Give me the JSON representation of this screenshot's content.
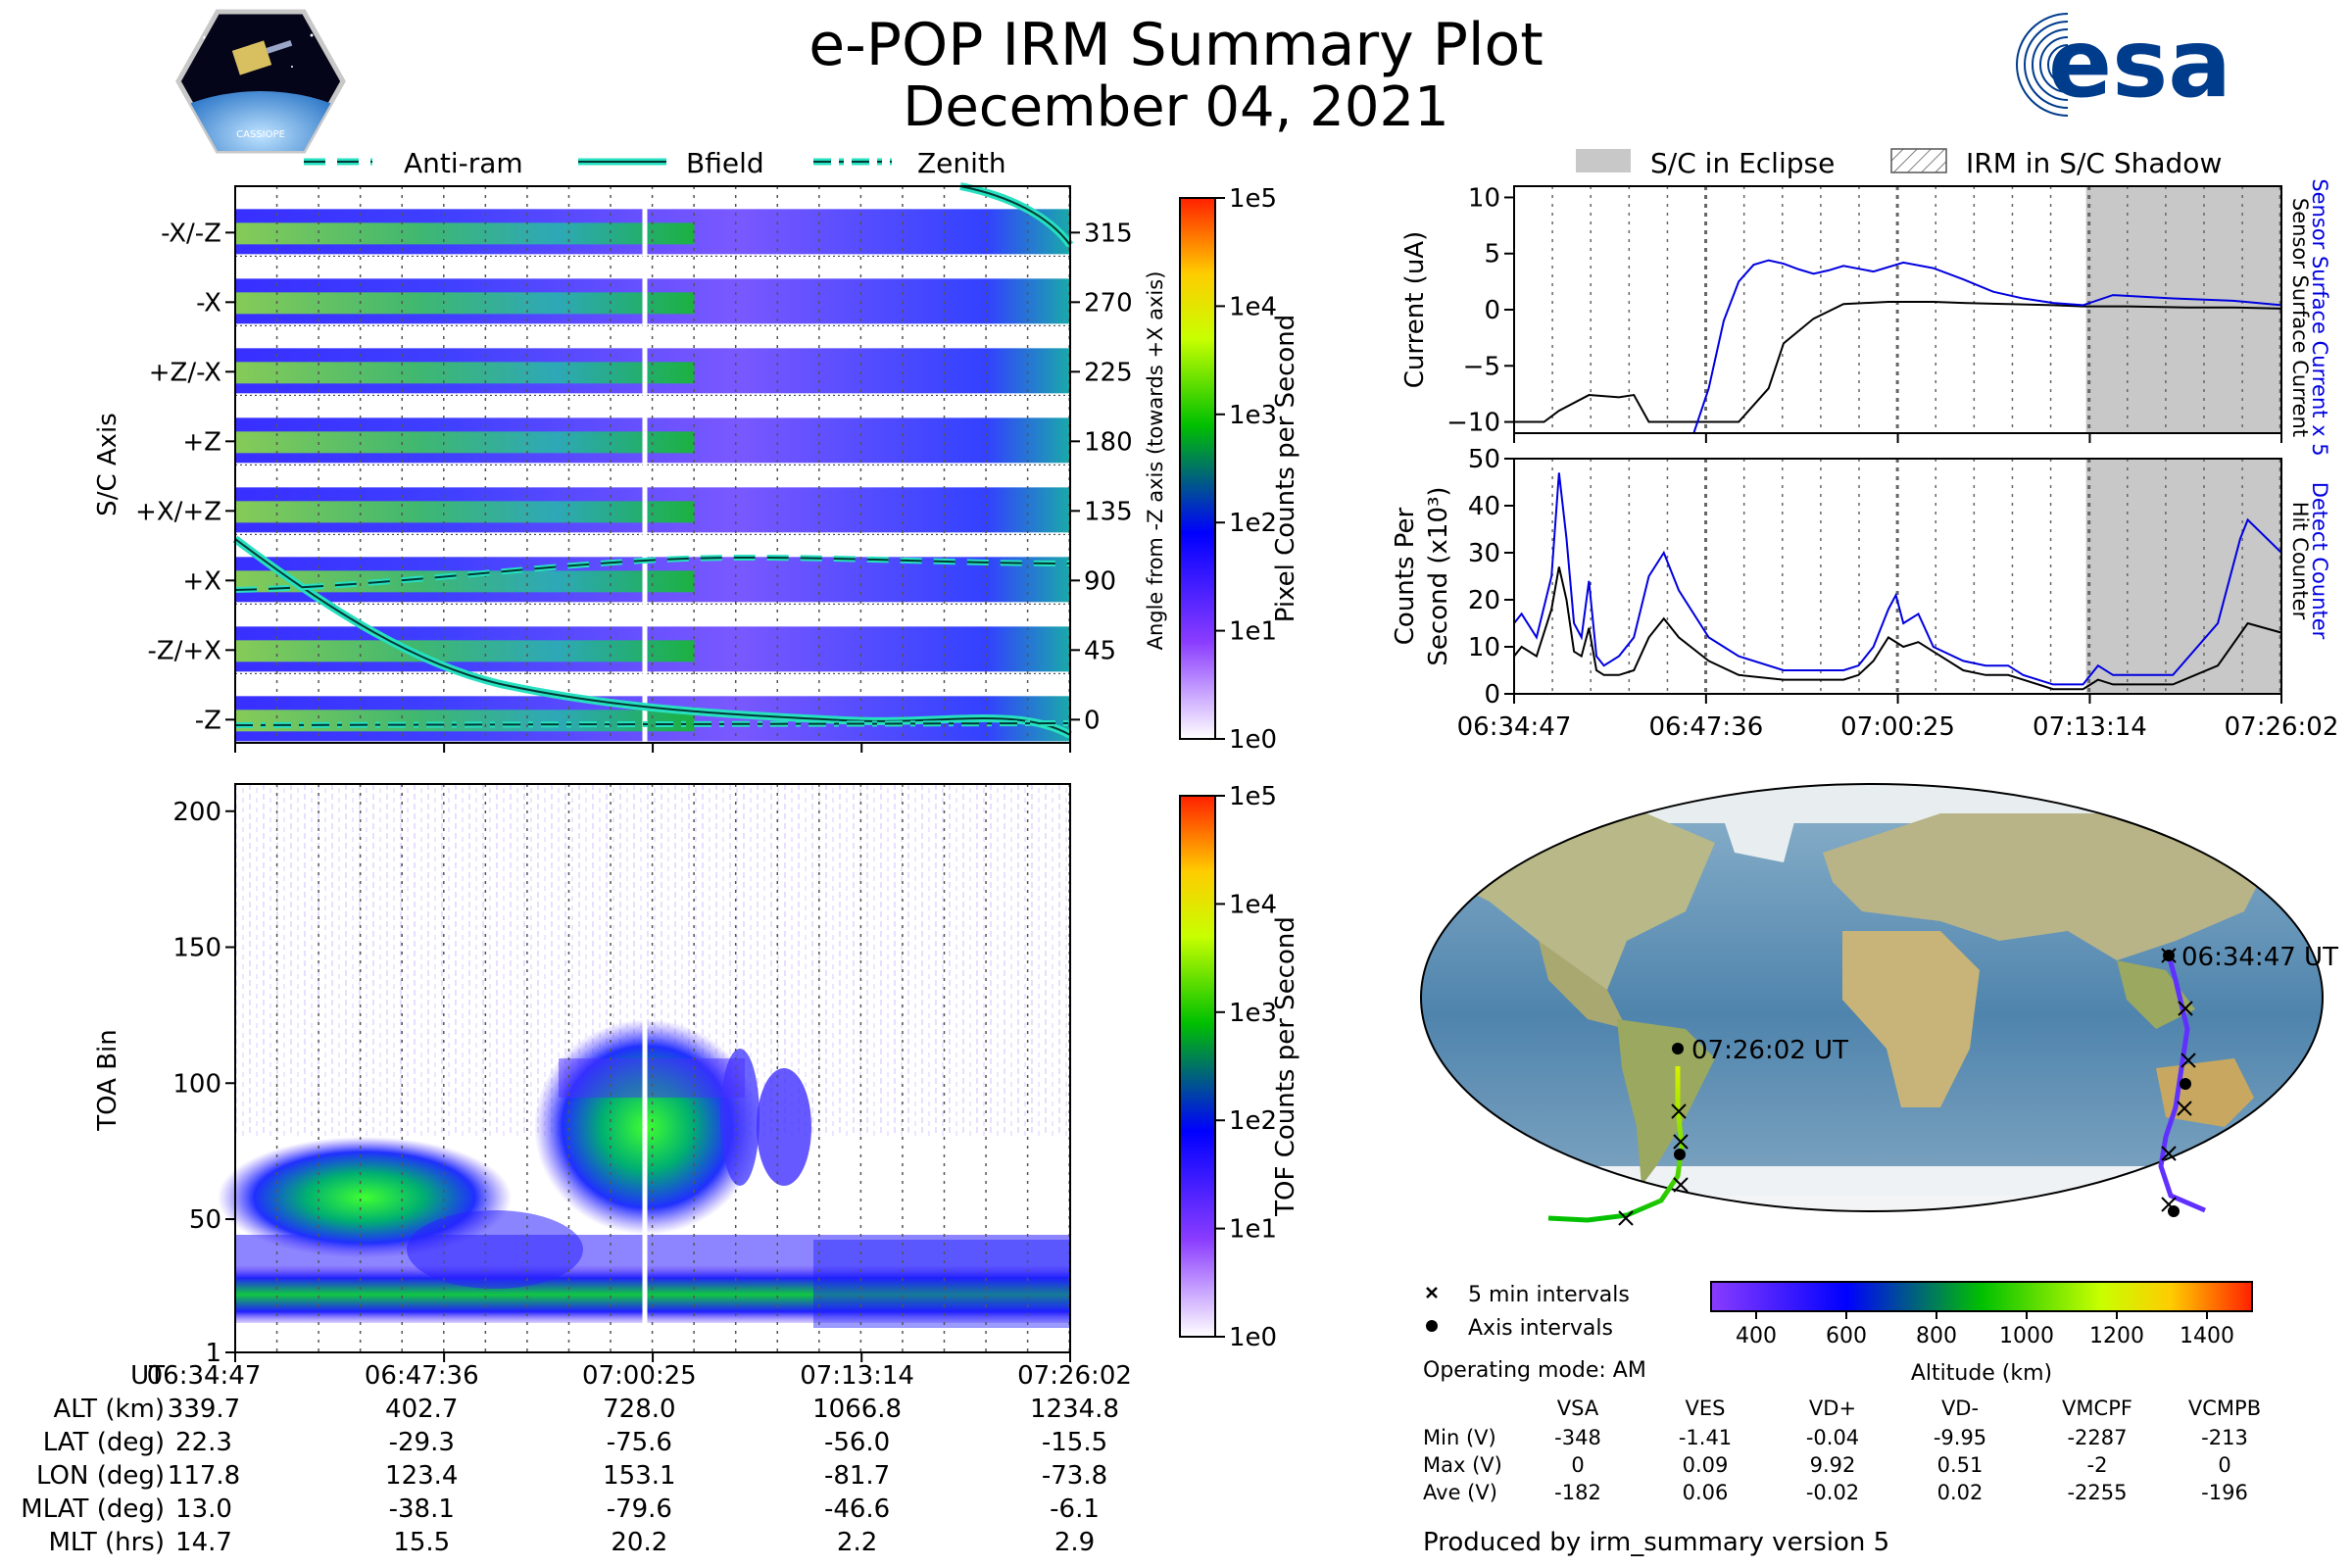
{
  "header": {
    "title": "e-POP IRM Summary Plot",
    "date": "December 04, 2021",
    "logo_left_text": "CASSIOPE",
    "logo_right_text": "esa"
  },
  "legend_top_left": [
    {
      "label": "Anti-ram",
      "style": "dashed"
    },
    {
      "label": "Bfield",
      "style": "solid"
    },
    {
      "label": "Zenith",
      "style": "dashdot"
    }
  ],
  "legend_top_right": [
    {
      "label": "S/C in Eclipse",
      "style": "gray-fill"
    },
    {
      "label": "IRM in S/C Shadow",
      "style": "hatch"
    }
  ],
  "colors": {
    "accent_cyan": "#27e0c0",
    "current_blue": "#0000e0",
    "eclipse_gray": "#c8c8c8",
    "cmap": [
      "#ffffff",
      "#8a3cff",
      "#0000ff",
      "#00c000",
      "#c8ff00",
      "#ffcc00",
      "#ff2000"
    ]
  },
  "chart_data": [
    {
      "type": "heatmap",
      "name": "pixel",
      "ylabel": "S/C Axis",
      "y2label": "Angle from -Z axis (towards +X axis)",
      "ytick_labels": [
        "-X/-Z",
        "-X",
        "+Z/-X",
        "+Z",
        "+X/+Z",
        "+X",
        "-Z/+X",
        "-Z"
      ],
      "ytick_angles": [
        315,
        270,
        225,
        180,
        135,
        90,
        45,
        0
      ],
      "ylim": [
        -15,
        345
      ],
      "colorbar": {
        "label": "Pixel Counts per Second",
        "ticks": [
          "1e5",
          "1e4",
          "1e3",
          "1e2",
          "1e1",
          "1e0"
        ]
      }
    },
    {
      "type": "heatmap",
      "name": "toa",
      "ylabel": "TOA Bin",
      "yticks": [
        1,
        50,
        100,
        150,
        200
      ],
      "ylim": [
        1,
        210
      ],
      "colorbar": {
        "label": "TOF Counts per Second",
        "ticks": [
          "1e5",
          "1e4",
          "1e3",
          "1e2",
          "1e1",
          "1e0"
        ]
      }
    },
    {
      "type": "line",
      "name": "current",
      "ylabel": "Current (uA)",
      "ylim": [
        -11,
        11
      ],
      "yticks": [
        10,
        5,
        0,
        -5,
        -10
      ],
      "right_label_blue": "Sensor Surface Current x 5",
      "right_label_black": "Sensor Surface Current",
      "eclipse_start_min": 38.2,
      "series": [
        {
          "name": "Sensor Surface Current",
          "color": "#000000",
          "x": [
            0,
            2,
            3,
            5,
            7,
            8,
            9,
            11,
            13,
            15,
            17,
            18,
            20,
            22,
            25,
            28,
            30,
            33,
            36,
            38,
            41,
            45,
            48,
            51.25
          ],
          "y": [
            -10,
            -10,
            -9,
            -7.6,
            -7.8,
            -7.6,
            -10,
            -10,
            -10,
            -10,
            -7,
            -3,
            -0.8,
            0.5,
            0.7,
            0.7,
            0.6,
            0.5,
            0.4,
            0.3,
            0.3,
            0.2,
            0.2,
            0.1
          ]
        },
        {
          "name": "Sensor Surface Current x 5",
          "color": "#0000e0",
          "x": [
            12,
            13,
            14,
            15,
            16,
            17,
            18,
            19,
            20,
            21,
            22,
            24,
            26,
            28,
            30,
            32,
            34,
            36,
            38,
            40,
            44,
            48,
            51.25
          ],
          "y": [
            -11,
            -7,
            -1,
            2.5,
            4,
            4.4,
            4.1,
            3.6,
            3.2,
            3.5,
            3.9,
            3.4,
            4.2,
            3.7,
            2.7,
            1.6,
            1.0,
            0.6,
            0.4,
            1.3,
            1.0,
            0.8,
            0.4
          ]
        }
      ]
    },
    {
      "type": "line",
      "name": "counts",
      "ylabel": "Counts Per Second (x10^3)",
      "ylim": [
        0,
        50
      ],
      "yticks": [
        0,
        10,
        20,
        30,
        40,
        50
      ],
      "right_label_blue": "Detect Counter",
      "right_label_black": "Hit Counter",
      "xtick_labels": [
        "06:34:47",
        "06:47:36",
        "07:00:25",
        "07:13:14",
        "07:26:02"
      ],
      "series": [
        {
          "name": "Hit Counter",
          "color": "#000000",
          "x": [
            0,
            0.5,
            1.5,
            2.5,
            3,
            3.5,
            4,
            4.5,
            5,
            5.5,
            6,
            7,
            8,
            9,
            10,
            11,
            13,
            15,
            18,
            20,
            21,
            22,
            23,
            24,
            25,
            26,
            27,
            28,
            30,
            31.5,
            33,
            34,
            36,
            38,
            39,
            40,
            44,
            47,
            49,
            51.25
          ],
          "y": [
            8,
            10,
            8,
            18,
            27,
            20,
            9,
            8,
            14,
            5,
            4,
            4,
            5,
            12,
            16,
            12,
            7,
            4,
            3,
            3,
            3,
            3,
            4,
            7,
            12,
            10,
            11,
            9,
            5,
            4,
            4,
            3,
            1,
            1,
            3,
            2,
            2,
            6,
            15,
            13
          ]
        },
        {
          "name": "Detect Counter",
          "color": "#0000e0",
          "x": [
            0,
            0.5,
            1.5,
            2.5,
            3,
            3.5,
            4,
            4.5,
            5,
            5.5,
            6,
            7,
            8,
            9,
            10,
            11,
            13,
            15,
            18,
            20,
            21,
            22,
            23,
            24,
            25,
            25.5,
            26,
            27,
            28,
            30,
            31.5,
            33,
            34,
            36,
            38,
            39,
            40,
            44,
            47,
            48.5,
            49,
            51.25
          ],
          "y": [
            15,
            17,
            12,
            25,
            47,
            33,
            15,
            12,
            24,
            8,
            6,
            8,
            12,
            25,
            30,
            22,
            12,
            8,
            5,
            5,
            5,
            5,
            6,
            10,
            18,
            21,
            15,
            17,
            10,
            7,
            6,
            6,
            4,
            2,
            2,
            6,
            4,
            4,
            15,
            33,
            37,
            30
          ]
        }
      ]
    }
  ],
  "time_axis": {
    "labels": [
      "06:34:47",
      "06:47:36",
      "07:00:25",
      "07:13:14",
      "07:26:02"
    ],
    "minutes": [
      0,
      12.82,
      25.63,
      38.45,
      51.25
    ]
  },
  "info_table": {
    "rows": [
      {
        "label": "UT",
        "values": [
          "06:34:47",
          "06:47:36",
          "07:00:25",
          "07:13:14",
          "07:26:02"
        ]
      },
      {
        "label": "ALT (km)",
        "values": [
          "339.7",
          "402.7",
          "728.0",
          "1066.8",
          "1234.8"
        ]
      },
      {
        "label": "LAT (deg)",
        "values": [
          "22.3",
          "-29.3",
          "-75.6",
          "-56.0",
          "-15.5"
        ]
      },
      {
        "label": "LON (deg)",
        "values": [
          "117.8",
          "123.4",
          "153.1",
          "-81.7",
          "-73.8"
        ]
      },
      {
        "label": "MLAT (deg)",
        "values": [
          "13.0",
          "-38.1",
          "-79.6",
          "-46.6",
          "-6.1"
        ]
      },
      {
        "label": "MLT (hrs)",
        "values": [
          "14.7",
          "15.5",
          "20.2",
          "2.2",
          "2.9"
        ]
      }
    ]
  },
  "map": {
    "start_label": "06:34:47 UT",
    "end_label": "07:26:02 UT",
    "legend_5min": "5 min intervals",
    "legend_axis": "Axis intervals",
    "altitude_label": "Altitude (km)",
    "altitude_ticks": [
      "400",
      "600",
      "800",
      "1000",
      "1200",
      "1400"
    ],
    "altitude_range": [
      300,
      1500
    ]
  },
  "operating_mode": "Operating mode: AM",
  "voltage_table": {
    "columns": [
      "VSA",
      "VES",
      "VD+",
      "VD-",
      "VMCPF",
      "VCMPB"
    ],
    "rows": [
      {
        "label": "Min (V)",
        "values": [
          "-348",
          "-1.41",
          "-0.04",
          "-9.95",
          "-2287",
          "-213"
        ]
      },
      {
        "label": "Max (V)",
        "values": [
          "0",
          "0.09",
          "9.92",
          "0.51",
          "-2",
          "0"
        ]
      },
      {
        "label": "Ave (V)",
        "values": [
          "-182",
          "0.06",
          "-0.02",
          "0.02",
          "-2255",
          "-196"
        ]
      }
    ]
  },
  "footer": "Produced by irm_summary version 5"
}
